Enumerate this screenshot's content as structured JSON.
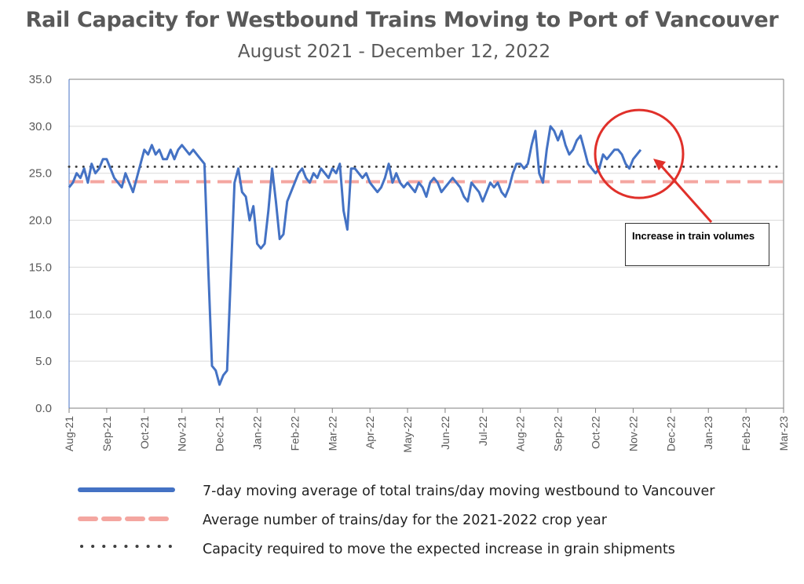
{
  "chart_data": {
    "type": "line",
    "title": "Rail Capacity for Westbound Trains Moving to Port of Vancouver",
    "subtitle": "August 2021 - December 12, 2022",
    "xlabel": "",
    "ylabel": "",
    "ylim": [
      0,
      35
    ],
    "yticks": [
      "0.0",
      "5.0",
      "10.0",
      "15.0",
      "20.0",
      "25.0",
      "30.0",
      "35.0"
    ],
    "xticks": [
      "Aug-21",
      "Sep-21",
      "Oct-21",
      "Nov-21",
      "Dec-21",
      "Jan-22",
      "Feb-22",
      "Mar-22",
      "Apr-22",
      "May-22",
      "Jun-22",
      "Jul-22",
      "Aug-22",
      "Sep-22",
      "Oct-22",
      "Nov-22",
      "Dec-22",
      "Jan-23",
      "Feb-23",
      "Mar-23"
    ],
    "grid": "horizontal",
    "legend_position": "bottom",
    "series": [
      {
        "name": "7-day moving average of total trains/day moving westbound to Vancouver",
        "style": "solid",
        "color": "#4472c4",
        "x_month_index": [
          0.0,
          0.1,
          0.2,
          0.3,
          0.4,
          0.5,
          0.6,
          0.7,
          0.8,
          0.9,
          1.0,
          1.1,
          1.2,
          1.3,
          1.4,
          1.5,
          1.6,
          1.7,
          1.8,
          1.9,
          2.0,
          2.1,
          2.2,
          2.3,
          2.4,
          2.5,
          2.6,
          2.7,
          2.8,
          2.9,
          3.0,
          3.1,
          3.2,
          3.3,
          3.4,
          3.5,
          3.6,
          3.7,
          3.8,
          3.9,
          4.0,
          4.1,
          4.2,
          4.3,
          4.4,
          4.5,
          4.6,
          4.7,
          4.8,
          4.9,
          5.0,
          5.1,
          5.2,
          5.3,
          5.4,
          5.5,
          5.6,
          5.7,
          5.8,
          5.9,
          6.0,
          6.1,
          6.2,
          6.3,
          6.4,
          6.5,
          6.6,
          6.7,
          6.8,
          6.9,
          7.0,
          7.1,
          7.2,
          7.3,
          7.4,
          7.5,
          7.6,
          7.7,
          7.8,
          7.9,
          8.0,
          8.1,
          8.2,
          8.3,
          8.4,
          8.5,
          8.6,
          8.7,
          8.8,
          8.9,
          9.0,
          9.1,
          9.2,
          9.3,
          9.4,
          9.5,
          9.6,
          9.7,
          9.8,
          9.9,
          10.0,
          10.1,
          10.2,
          10.3,
          10.4,
          10.5,
          10.6,
          10.7,
          10.8,
          10.9,
          11.0,
          11.1,
          11.2,
          11.3,
          11.4,
          11.5,
          11.6,
          11.7,
          11.8,
          11.9,
          12.0,
          12.1,
          12.2,
          12.3,
          12.4,
          12.5,
          12.6,
          12.7,
          12.8,
          12.9,
          13.0,
          13.1,
          13.2,
          13.3,
          13.4,
          13.5,
          13.6,
          13.7,
          13.8,
          13.9,
          14.0,
          14.1,
          14.2,
          14.3,
          14.4,
          14.5,
          14.6,
          14.7,
          14.8,
          14.9,
          15.0,
          15.1,
          15.2,
          15.3,
          15.4
        ],
        "values": [
          23.5,
          24.0,
          25.0,
          24.5,
          25.5,
          24.0,
          26.0,
          25.0,
          25.5,
          26.5,
          26.5,
          25.5,
          24.5,
          24.0,
          23.5,
          25.0,
          24.0,
          23.0,
          24.5,
          26.0,
          27.5,
          27.0,
          28.0,
          27.0,
          27.5,
          26.5,
          26.5,
          27.5,
          26.5,
          27.5,
          28.0,
          27.5,
          27.0,
          27.5,
          27.0,
          26.5,
          26.0,
          15.0,
          4.5,
          4.0,
          2.5,
          3.5,
          4.0,
          14.0,
          24.0,
          25.5,
          23.0,
          22.5,
          20.0,
          21.5,
          17.5,
          17.0,
          17.5,
          21.0,
          25.5,
          22.0,
          18.0,
          18.5,
          22.0,
          23.0,
          24.0,
          25.0,
          25.5,
          24.5,
          24.0,
          25.0,
          24.5,
          25.5,
          25.0,
          24.5,
          25.5,
          25.0,
          26.0,
          21.0,
          19.0,
          25.5,
          25.5,
          25.0,
          24.5,
          25.0,
          24.0,
          23.5,
          23.0,
          23.5,
          24.5,
          26.0,
          24.0,
          25.0,
          24.0,
          23.5,
          24.0,
          23.5,
          23.0,
          24.0,
          23.5,
          22.5,
          24.0,
          24.5,
          24.0,
          23.0,
          23.5,
          24.0,
          24.5,
          24.0,
          23.5,
          22.5,
          22.0,
          24.0,
          23.5,
          23.0,
          22.0,
          23.0,
          24.0,
          23.5,
          24.0,
          23.0,
          22.5,
          23.5,
          25.0,
          26.0,
          26.0,
          25.5,
          26.0,
          28.0,
          29.5,
          25.0,
          24.0,
          27.5,
          30.0,
          29.5,
          28.5,
          29.5,
          28.0,
          27.0,
          27.5,
          28.5,
          29.0,
          27.5,
          26.0,
          25.5,
          25.0,
          25.5,
          27.0,
          26.5,
          27.0,
          27.5,
          27.5,
          27.0,
          26.0,
          25.5,
          26.5,
          27.0,
          27.5
        ]
      },
      {
        "name": "Average number of trains/day for the 2021-2022 crop year",
        "style": "dashed",
        "color": "#f4a6a0",
        "value": 24.1
      },
      {
        "name": "Capacity required to move the expected increase in grain shipments",
        "style": "dotted",
        "color": "#404040",
        "value": 25.7
      }
    ],
    "annotation": {
      "text": "Increase in train volumes",
      "target_month_index": 15.2,
      "target_value": 26.8,
      "color": "#e0302a"
    }
  },
  "legend": {
    "items": [
      "7-day moving average of total trains/day moving westbound to Vancouver",
      "Average number of trains/day for the 2021-2022 crop year",
      "Capacity required to move the expected increase in grain shipments"
    ]
  }
}
